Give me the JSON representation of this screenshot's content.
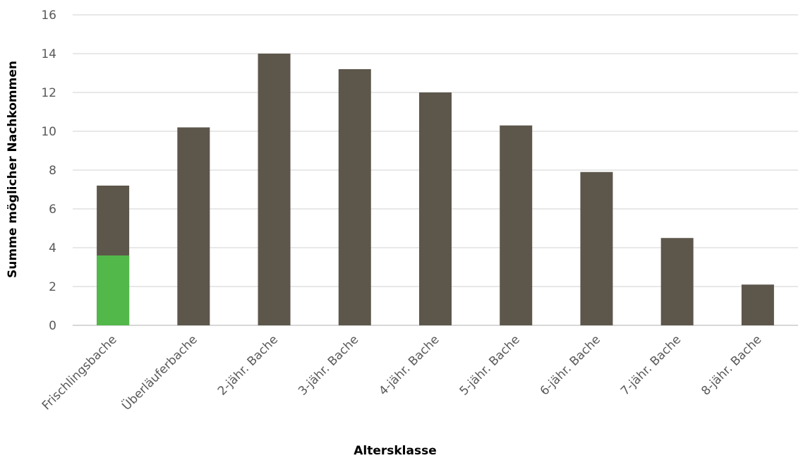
{
  "chart_data": {
    "type": "bar",
    "title": "",
    "xlabel": "Altersklasse",
    "ylabel": "Summe möglicher Nachkommen",
    "ylim": [
      0,
      16
    ],
    "yticks": [
      0,
      2,
      4,
      6,
      8,
      10,
      12,
      14,
      16
    ],
    "grid": true,
    "categories": [
      "Frischlingsbache",
      "Überläuferbache",
      "2-jähr. Bache",
      "3-jähr. Bache",
      "4-jähr. Bache",
      "5-jähr. Bache",
      "6-jähr. Bache",
      "7-jähr. Bache",
      "8-jähr. Bache"
    ],
    "values": [
      7.2,
      10.2,
      14.0,
      13.2,
      12.0,
      10.3,
      7.9,
      4.5,
      2.1
    ],
    "bar_color": "#5d564b",
    "highlight": {
      "category_index": 0,
      "value": 3.6,
      "color": "#52b84a"
    }
  }
}
